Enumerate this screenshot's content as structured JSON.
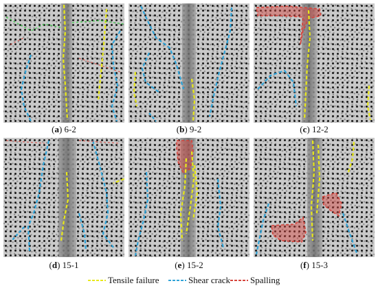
{
  "panels": [
    {
      "letter": "a",
      "specimen": "6-2"
    },
    {
      "letter": "b",
      "specimen": "9-2"
    },
    {
      "letter": "c",
      "specimen": "12-2"
    },
    {
      "letter": "d",
      "specimen": "15-1"
    },
    {
      "letter": "e",
      "specimen": "15-2"
    },
    {
      "letter": "f",
      "specimen": "15-3"
    }
  ],
  "legend": [
    {
      "label": "Tensile failure",
      "color": "#e8e81a",
      "icon": "yellow-dash-line"
    },
    {
      "label": "Shear crack",
      "color": "#2fa3d8",
      "icon": "blue-dash-line"
    },
    {
      "label": "Spalling",
      "color": "#d6433b",
      "icon": "red-dash-line"
    }
  ],
  "colors": {
    "tensile": "#e8e81a",
    "shear": "#2fa3d8",
    "spalling": "#d6433b",
    "secondary": "#30d040"
  }
}
